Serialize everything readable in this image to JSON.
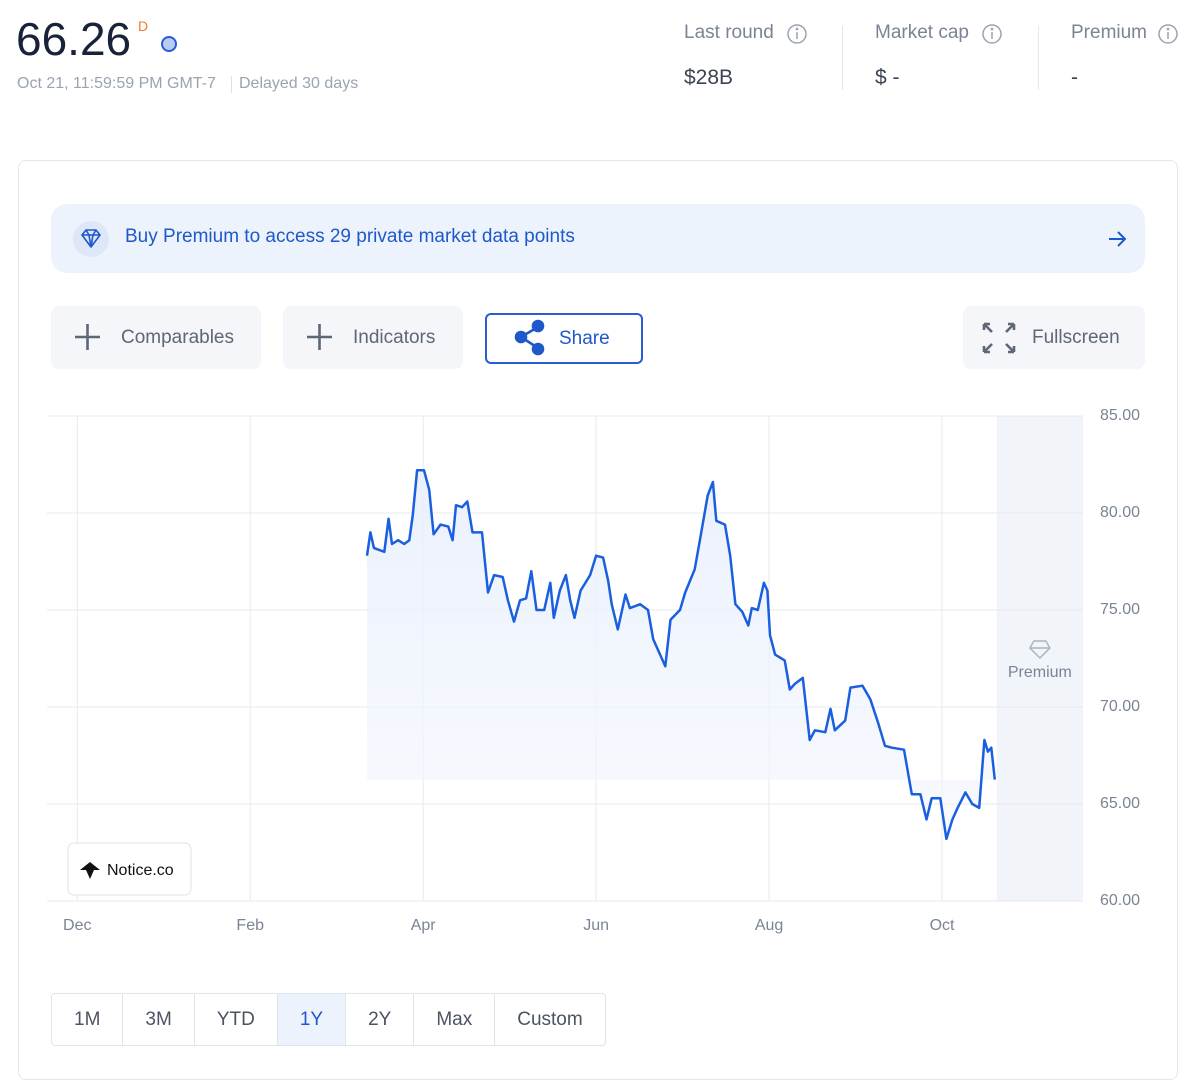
{
  "header": {
    "price": "66.26",
    "price_flag": "D",
    "timestamp": "Oct 21, 11:59:59 PM GMT-7",
    "delay": "Delayed 30 days"
  },
  "stats": [
    {
      "label": "Last round",
      "value": "$28B"
    },
    {
      "label": "Market cap",
      "value": "$ -"
    },
    {
      "label": "Premium",
      "value": "-"
    }
  ],
  "banner": {
    "text": "Buy Premium to access 29 private market data points"
  },
  "toolbar": {
    "buttons": [
      "Comparables",
      "Indicators",
      "Share"
    ],
    "fullscreen": "Fullscreen"
  },
  "chart_data": {
    "type": "line",
    "x": [
      3.35,
      3.39,
      3.43,
      3.49,
      3.55,
      3.6,
      3.64,
      3.71,
      3.78,
      3.84,
      3.88,
      3.93,
      4.01,
      4.07,
      4.12,
      4.2,
      4.29,
      4.34,
      4.38,
      4.45,
      4.51,
      4.57,
      4.68,
      4.75,
      4.82,
      4.92,
      4.98,
      5.05,
      5.12,
      5.19,
      5.25,
      5.31,
      5.4,
      5.47,
      5.51,
      5.58,
      5.65,
      5.7,
      5.75,
      5.82,
      5.93,
      6.0,
      6.08,
      6.14,
      6.18,
      6.25,
      6.34,
      6.39,
      6.51,
      6.6,
      6.66,
      6.74,
      6.8,
      6.86,
      6.97,
      7.03,
      7.14,
      7.2,
      7.29,
      7.35,
      7.39,
      7.49,
      7.55,
      7.61,
      7.69,
      7.76,
      7.8,
      7.87,
      7.94,
      7.98,
      8.01,
      8.07,
      8.18,
      8.24,
      8.3,
      8.39,
      8.47,
      8.53,
      8.65,
      8.71,
      8.76,
      8.88,
      8.94,
      9.08,
      9.17,
      9.26,
      9.34,
      9.42,
      9.56,
      9.65,
      9.75,
      9.82,
      9.88,
      9.98,
      10.05,
      10.12,
      10.18,
      10.27,
      10.35,
      10.43,
      10.49,
      10.53,
      10.57,
      10.61
    ],
    "values": [
      77.8,
      79.0,
      78.2,
      78.1,
      78.0,
      79.7,
      78.4,
      78.6,
      78.4,
      78.6,
      79.9,
      82.2,
      82.2,
      81.2,
      78.9,
      79.4,
      79.3,
      78.6,
      80.4,
      80.3,
      80.6,
      79.0,
      79.0,
      75.9,
      76.8,
      76.7,
      75.5,
      74.4,
      75.5,
      75.6,
      77.0,
      75.0,
      75.0,
      76.4,
      74.6,
      76.0,
      76.8,
      75.5,
      74.6,
      76.0,
      76.8,
      77.8,
      77.7,
      76.5,
      75.3,
      74.0,
      75.8,
      75.1,
      75.3,
      75.0,
      73.5,
      72.7,
      72.1,
      74.5,
      75.0,
      75.9,
      77.1,
      78.6,
      80.9,
      81.6,
      79.6,
      79.4,
      77.8,
      75.3,
      74.9,
      74.2,
      75.1,
      75.0,
      76.4,
      76.0,
      73.7,
      72.7,
      72.4,
      70.9,
      71.2,
      71.5,
      68.3,
      68.8,
      68.7,
      69.9,
      68.8,
      69.3,
      71.0,
      71.1,
      70.4,
      69.2,
      68.0,
      67.9,
      67.8,
      65.5,
      65.5,
      64.2,
      65.3,
      65.3,
      63.2,
      64.2,
      64.8,
      65.6,
      65.0,
      64.8,
      68.3,
      67.7,
      67.9,
      66.26
    ],
    "color": "#1a5fe0",
    "xlim": [
      -0.35,
      11.63
    ],
    "ylim": [
      60,
      85
    ],
    "xticks": [
      {
        "value": 0,
        "label": "Dec"
      },
      {
        "value": 2,
        "label": "Feb"
      },
      {
        "value": 4,
        "label": "Apr"
      },
      {
        "value": 6,
        "label": "Jun"
      },
      {
        "value": 8,
        "label": "Aug"
      },
      {
        "value": 10,
        "label": "Oct"
      }
    ],
    "yticks": [
      {
        "value": 60,
        "label": "60.00"
      },
      {
        "value": 65,
        "label": "65.00"
      },
      {
        "value": 70,
        "label": "70.00"
      },
      {
        "value": 75,
        "label": "75.00"
      },
      {
        "value": 80,
        "label": "80.00"
      },
      {
        "value": 85,
        "label": "85.00"
      }
    ],
    "grid": true,
    "premium_label": "Premium",
    "watermark": "Notice.co"
  },
  "range_buttons": {
    "options": [
      "1M",
      "3M",
      "YTD",
      "1Y",
      "2Y",
      "Max",
      "Custom"
    ],
    "selected": "1Y"
  }
}
